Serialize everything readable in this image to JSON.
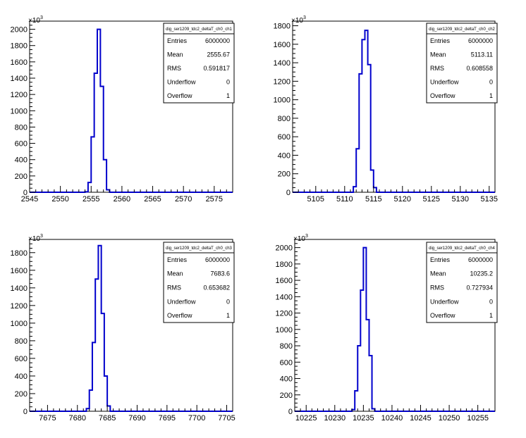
{
  "chart_data": [
    {
      "type": "histogram",
      "title": "dig_ser1209_tdc2_deltaT_ch0_ch1",
      "xlim": [
        2545,
        2578
      ],
      "ylim": [
        0,
        2100
      ],
      "y_exponent_label": "×10",
      "y_exponent_power": "3",
      "xticks": [
        2545,
        2550,
        2555,
        2560,
        2565,
        2570,
        2575
      ],
      "yticks": [
        0,
        200,
        400,
        600,
        800,
        1000,
        1200,
        1400,
        1600,
        1800,
        2000
      ],
      "bin_width": 0.5,
      "bins": [
        {
          "x": 2554.0,
          "y": 5
        },
        {
          "x": 2554.5,
          "y": 120
        },
        {
          "x": 2555.0,
          "y": 680
        },
        {
          "x": 2555.5,
          "y": 1460
        },
        {
          "x": 2556.0,
          "y": 2000
        },
        {
          "x": 2556.5,
          "y": 1300
        },
        {
          "x": 2557.0,
          "y": 400
        },
        {
          "x": 2557.5,
          "y": 30
        }
      ],
      "stats": [
        {
          "label": "Entries",
          "value": "6000000"
        },
        {
          "label": "Mean",
          "value": "2555.67"
        },
        {
          "label": "RMS",
          "value": "0.591817"
        },
        {
          "label": "Underflow",
          "value": "0"
        },
        {
          "label": "Overflow",
          "value": "1"
        }
      ]
    },
    {
      "type": "histogram",
      "title": "dig_ser1209_tdc2_deltaT_ch0_ch2",
      "xlim": [
        5101,
        5136
      ],
      "ylim": [
        0,
        1850
      ],
      "y_exponent_label": "×10",
      "y_exponent_power": "3",
      "xticks": [
        5105,
        5110,
        5115,
        5120,
        5125,
        5130,
        5135
      ],
      "yticks": [
        0,
        200,
        400,
        600,
        800,
        1000,
        1200,
        1400,
        1600,
        1800
      ],
      "bin_width": 0.5,
      "bins": [
        {
          "x": 5111.5,
          "y": 60
        },
        {
          "x": 5112.0,
          "y": 470
        },
        {
          "x": 5112.5,
          "y": 1280
        },
        {
          "x": 5113.0,
          "y": 1650
        },
        {
          "x": 5113.5,
          "y": 1750
        },
        {
          "x": 5114.0,
          "y": 1380
        },
        {
          "x": 5114.5,
          "y": 240
        },
        {
          "x": 5115.0,
          "y": 50
        }
      ],
      "stats": [
        {
          "label": "Entries",
          "value": "6000000"
        },
        {
          "label": "Mean",
          "value": "5113.11"
        },
        {
          "label": "RMS",
          "value": "0.608558"
        },
        {
          "label": "Underflow",
          "value": "0"
        },
        {
          "label": "Overflow",
          "value": "1"
        }
      ]
    },
    {
      "type": "histogram",
      "title": "dig_ser1209_tdc2_deltaT_ch0_ch3",
      "xlim": [
        7672,
        7706
      ],
      "ylim": [
        0,
        1950
      ],
      "y_exponent_label": "×10",
      "y_exponent_power": "3",
      "xticks": [
        7675,
        7680,
        7685,
        7690,
        7695,
        7700,
        7705
      ],
      "yticks": [
        0,
        200,
        400,
        600,
        800,
        1000,
        1200,
        1400,
        1600,
        1800
      ],
      "bin_width": 0.5,
      "bins": [
        {
          "x": 7681.5,
          "y": 30
        },
        {
          "x": 7682.0,
          "y": 240
        },
        {
          "x": 7682.5,
          "y": 780
        },
        {
          "x": 7683.0,
          "y": 1500
        },
        {
          "x": 7683.5,
          "y": 1880
        },
        {
          "x": 7684.0,
          "y": 1110
        },
        {
          "x": 7684.5,
          "y": 400
        },
        {
          "x": 7685.0,
          "y": 60
        }
      ],
      "stats": [
        {
          "label": "Entries",
          "value": "6000000"
        },
        {
          "label": "Mean",
          "value": "7683.6"
        },
        {
          "label": "RMS",
          "value": "0.653682"
        },
        {
          "label": "Underflow",
          "value": "0"
        },
        {
          "label": "Overflow",
          "value": "1"
        }
      ]
    },
    {
      "type": "histogram",
      "title": "dig_ser1209_tdc2_deltaT_ch0_ch4",
      "xlim": [
        10223,
        10258
      ],
      "ylim": [
        0,
        2100
      ],
      "y_exponent_label": "×10",
      "y_exponent_power": "3",
      "xticks": [
        10225,
        10230,
        10235,
        10240,
        10245,
        10250,
        10255
      ],
      "yticks": [
        0,
        200,
        400,
        600,
        800,
        1000,
        1200,
        1400,
        1600,
        1800,
        2000
      ],
      "bin_width": 0.5,
      "bins": [
        {
          "x": 10233.0,
          "y": 20
        },
        {
          "x": 10233.5,
          "y": 250
        },
        {
          "x": 10234.0,
          "y": 800
        },
        {
          "x": 10234.5,
          "y": 1480
        },
        {
          "x": 10235.0,
          "y": 2000
        },
        {
          "x": 10235.5,
          "y": 1120
        },
        {
          "x": 10236.0,
          "y": 680
        },
        {
          "x": 10236.5,
          "y": 30
        }
      ],
      "stats": [
        {
          "label": "Entries",
          "value": "6000000"
        },
        {
          "label": "Mean",
          "value": "10235.2"
        },
        {
          "label": "RMS",
          "value": "0.727934"
        },
        {
          "label": "Underflow",
          "value": "0"
        },
        {
          "label": "Overflow",
          "value": "1"
        }
      ]
    }
  ],
  "colors": {
    "histogram": "#0000cc",
    "axis": "#000000",
    "background": "#ffffff"
  }
}
